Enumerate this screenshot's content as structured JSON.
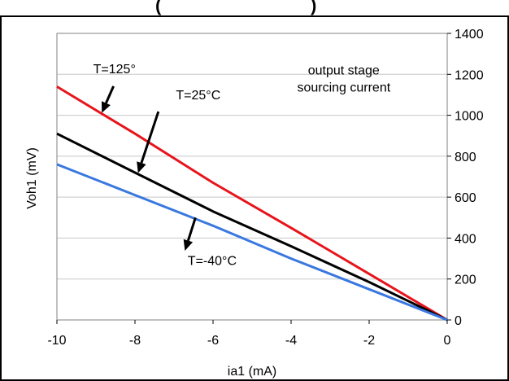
{
  "chart_data": {
    "type": "line",
    "title": "(",
    "title_right": ")",
    "xlabel": "ia1 (mA)",
    "ylabel": "Voh1 (mV)",
    "xlim": [
      -10,
      0
    ],
    "ylim": [
      0,
      1400
    ],
    "x_ticks": [
      -10,
      -8,
      -6,
      -4,
      -2,
      0
    ],
    "y_ticks": [
      0,
      200,
      400,
      600,
      800,
      1000,
      1200,
      1400
    ],
    "y_axis_side": "right",
    "grid": "horizontal",
    "series": [
      {
        "name": "T=125°",
        "color": "#e8141c",
        "x": [
          -10,
          -8,
          -6,
          -4,
          -2,
          0
        ],
        "y": [
          1140,
          910,
          670,
          450,
          225,
          0
        ]
      },
      {
        "name": "T=25°C",
        "color": "#000000",
        "x": [
          -10,
          -8,
          -6,
          -4,
          -2,
          0
        ],
        "y": [
          910,
          720,
          530,
          360,
          185,
          0
        ]
      },
      {
        "name": "T=-40°C",
        "color": "#3a78e0",
        "x": [
          -10,
          -8,
          -6,
          -4,
          -2,
          0
        ],
        "y": [
          760,
          610,
          460,
          300,
          150,
          0
        ]
      }
    ],
    "annotations": [
      {
        "text": "output stage",
        "x": -2.65,
        "y": 1200
      },
      {
        "text": "sourcing current",
        "x": -2.65,
        "y": 1115
      }
    ],
    "series_labels": [
      {
        "text": "T=125°",
        "x": -9.07,
        "y": 1206
      },
      {
        "text": "T=25°C",
        "x": -6.95,
        "y": 1077
      },
      {
        "text": "T=-40°C",
        "x": -6.65,
        "y": 269
      }
    ]
  }
}
